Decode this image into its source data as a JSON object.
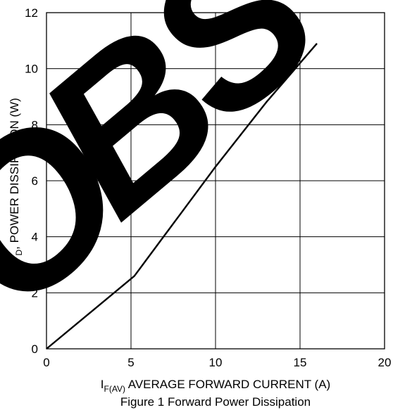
{
  "chart_data": {
    "type": "line",
    "caption": "Figure 1 Forward Power Dissipation",
    "xlabel": {
      "main": "I",
      "subscript": "F(AV)",
      "rest": " AVERAGE FORWARD CURRENT (A)"
    },
    "ylabel": {
      "main": "P",
      "subscript": "D",
      "rest": ", POWER DISSIPATION (W)"
    },
    "xlim": [
      0,
      20
    ],
    "ylim": [
      0,
      12
    ],
    "xticks": [
      "0",
      "5",
      "10",
      "15",
      "20"
    ],
    "yticks": [
      "0",
      "2",
      "4",
      "6",
      "8",
      "10",
      "12"
    ],
    "grid": true,
    "series": [
      {
        "color": "#000000",
        "points": [
          [
            0,
            0
          ],
          [
            5.2,
            2.6
          ],
          [
            6.8,
            3.9
          ],
          [
            10,
            6.5
          ],
          [
            13,
            8.8
          ],
          [
            16,
            10.9
          ]
        ]
      }
    ],
    "watermark": {
      "text": "OBS",
      "color": "#e8333a"
    }
  }
}
